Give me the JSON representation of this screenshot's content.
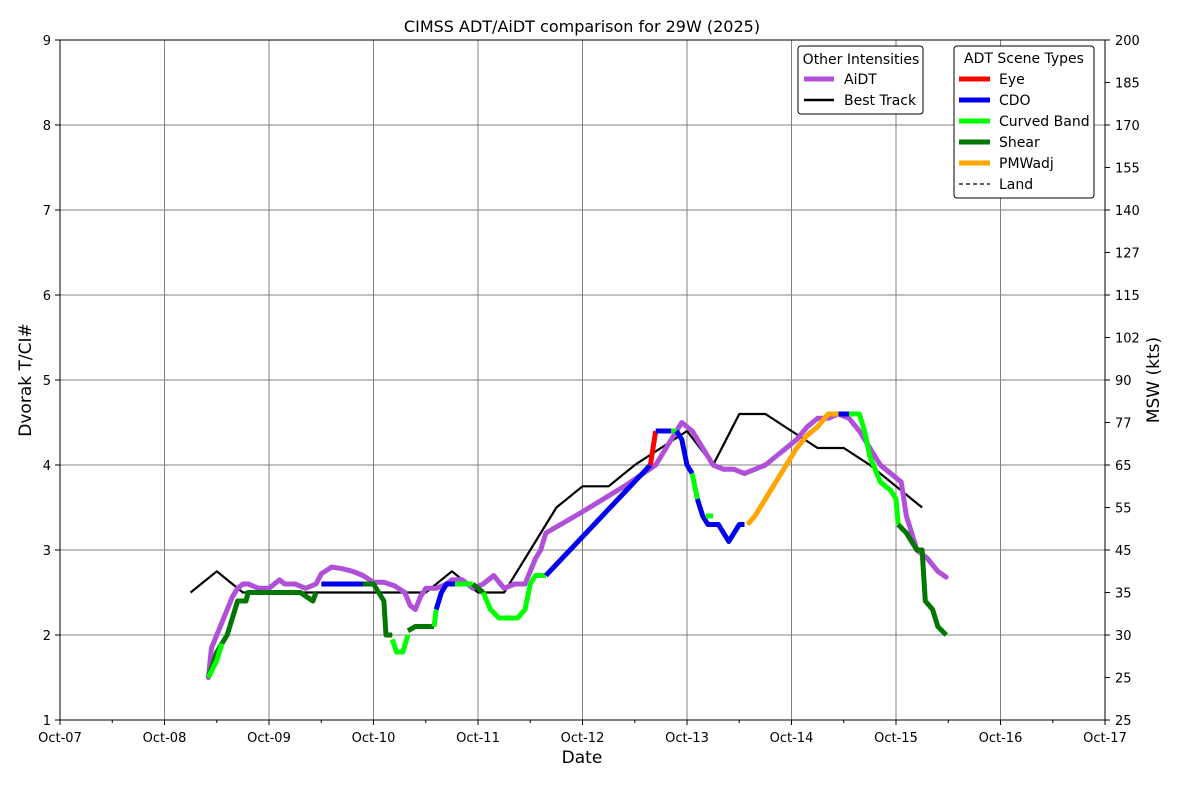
{
  "chart_data": {
    "type": "line",
    "title": "CIMSS ADT/AiDT comparison for 29W (2025)",
    "xlabel": "Date",
    "ylabel": "Dvorak T/CI#",
    "ylabel_right": "MSW (kts)",
    "x_ticks": [
      "Oct-07",
      "Oct-08",
      "Oct-09",
      "Oct-10",
      "Oct-11",
      "Oct-12",
      "Oct-13",
      "Oct-14",
      "Oct-15",
      "Oct-16",
      "Oct-17"
    ],
    "xlim": [
      0,
      10
    ],
    "ylim": [
      1,
      9
    ],
    "y_ticks": [
      1,
      2,
      3,
      4,
      5,
      6,
      7,
      8,
      9
    ],
    "y_ticks_right": [
      {
        "t": 1.0,
        "label": "25"
      },
      {
        "t": 1.5,
        "label": "25"
      },
      {
        "t": 2.0,
        "label": "30"
      },
      {
        "t": 2.5,
        "label": "35"
      },
      {
        "t": 3.0,
        "label": "45"
      },
      {
        "t": 3.5,
        "label": "55"
      },
      {
        "t": 4.0,
        "label": "65"
      },
      {
        "t": 4.5,
        "label": "77"
      },
      {
        "t": 5.0,
        "label": "90"
      },
      {
        "t": 5.5,
        "label": "102"
      },
      {
        "t": 6.0,
        "label": "115"
      },
      {
        "t": 6.5,
        "label": "127"
      },
      {
        "t": 7.0,
        "label": "140"
      },
      {
        "t": 7.5,
        "label": "155"
      },
      {
        "t": 8.0,
        "label": "170"
      },
      {
        "t": 8.5,
        "label": "185"
      },
      {
        "t": 9.0,
        "label": "200"
      }
    ],
    "grid": true,
    "legend_intensities": {
      "title": "Other Intensities",
      "placement": "top-right",
      "entries": [
        {
          "label": "AiDT",
          "color": "#b04fd8",
          "style": "solid"
        },
        {
          "label": "Best Track",
          "color": "#000000",
          "style": "solid"
        }
      ]
    },
    "legend_scenes": {
      "title": "ADT Scene Types",
      "placement": "top-right",
      "entries": [
        {
          "label": "Eye",
          "color": "#ff0000",
          "style": "solid"
        },
        {
          "label": "CDO",
          "color": "#0000ee",
          "style": "solid"
        },
        {
          "label": "Curved Band",
          "color": "#00ff00",
          "style": "solid"
        },
        {
          "label": "Shear",
          "color": "#007700",
          "style": "solid"
        },
        {
          "label": "PMWadj",
          "color": "#ffa500",
          "style": "solid"
        },
        {
          "label": "Land",
          "color": "#000000",
          "style": "dashed"
        }
      ]
    },
    "series": [
      {
        "name": "Best Track",
        "color": "#000000",
        "points": [
          [
            1.25,
            2.5
          ],
          [
            1.5,
            2.75
          ],
          [
            1.75,
            2.5
          ],
          [
            2.0,
            2.5
          ],
          [
            2.25,
            2.5
          ],
          [
            2.5,
            2.5
          ],
          [
            2.75,
            2.5
          ],
          [
            3.0,
            2.5
          ],
          [
            3.25,
            2.5
          ],
          [
            3.5,
            2.5
          ],
          [
            3.75,
            2.75
          ],
          [
            4.0,
            2.5
          ],
          [
            4.25,
            2.5
          ],
          [
            4.5,
            3.0
          ],
          [
            4.75,
            3.5
          ],
          [
            5.0,
            3.75
          ],
          [
            5.25,
            3.75
          ],
          [
            5.5,
            4.0
          ],
          [
            5.75,
            4.2
          ],
          [
            6.0,
            4.4
          ],
          [
            6.25,
            4.0
          ],
          [
            6.5,
            4.6
          ],
          [
            6.75,
            4.6
          ],
          [
            7.0,
            4.4
          ],
          [
            7.25,
            4.2
          ],
          [
            7.5,
            4.2
          ],
          [
            7.75,
            4.0
          ],
          [
            8.0,
            3.75
          ],
          [
            8.25,
            3.5
          ]
        ]
      },
      {
        "name": "AiDT",
        "color": "#b04fd8",
        "points": [
          [
            1.42,
            1.5
          ],
          [
            1.45,
            1.85
          ],
          [
            1.5,
            2.0
          ],
          [
            1.55,
            2.15
          ],
          [
            1.6,
            2.3
          ],
          [
            1.65,
            2.45
          ],
          [
            1.7,
            2.55
          ],
          [
            1.75,
            2.6
          ],
          [
            1.8,
            2.6
          ],
          [
            1.9,
            2.55
          ],
          [
            2.0,
            2.55
          ],
          [
            2.1,
            2.65
          ],
          [
            2.15,
            2.6
          ],
          [
            2.25,
            2.6
          ],
          [
            2.35,
            2.55
          ],
          [
            2.45,
            2.6
          ],
          [
            2.5,
            2.72
          ],
          [
            2.6,
            2.8
          ],
          [
            2.7,
            2.78
          ],
          [
            2.8,
            2.75
          ],
          [
            2.9,
            2.7
          ],
          [
            3.0,
            2.62
          ],
          [
            3.1,
            2.62
          ],
          [
            3.2,
            2.58
          ],
          [
            3.3,
            2.5
          ],
          [
            3.35,
            2.35
          ],
          [
            3.4,
            2.3
          ],
          [
            3.45,
            2.45
          ],
          [
            3.5,
            2.55
          ],
          [
            3.6,
            2.55
          ],
          [
            3.7,
            2.6
          ],
          [
            3.75,
            2.65
          ],
          [
            3.85,
            2.65
          ],
          [
            3.95,
            2.55
          ],
          [
            4.05,
            2.6
          ],
          [
            4.15,
            2.7
          ],
          [
            4.25,
            2.55
          ],
          [
            4.35,
            2.6
          ],
          [
            4.45,
            2.6
          ],
          [
            4.55,
            2.9
          ],
          [
            4.6,
            3.0
          ],
          [
            4.65,
            3.2
          ],
          [
            5.0,
            3.45
          ],
          [
            5.4,
            3.75
          ],
          [
            5.7,
            4.0
          ],
          [
            5.85,
            4.3
          ],
          [
            5.95,
            4.5
          ],
          [
            6.05,
            4.4
          ],
          [
            6.15,
            4.2
          ],
          [
            6.25,
            4.0
          ],
          [
            6.35,
            3.95
          ],
          [
            6.45,
            3.95
          ],
          [
            6.55,
            3.9
          ],
          [
            6.65,
            3.95
          ],
          [
            6.75,
            4.0
          ],
          [
            6.85,
            4.1
          ],
          [
            6.95,
            4.2
          ],
          [
            7.05,
            4.3
          ],
          [
            7.15,
            4.45
          ],
          [
            7.25,
            4.55
          ],
          [
            7.35,
            4.55
          ],
          [
            7.45,
            4.6
          ],
          [
            7.55,
            4.55
          ],
          [
            7.65,
            4.4
          ],
          [
            7.75,
            4.2
          ],
          [
            7.85,
            4.0
          ],
          [
            7.95,
            3.9
          ],
          [
            8.05,
            3.8
          ],
          [
            8.1,
            3.4
          ],
          [
            8.2,
            3.0
          ],
          [
            8.3,
            2.9
          ],
          [
            8.4,
            2.75
          ],
          [
            8.48,
            2.68
          ]
        ]
      },
      {
        "name": "ADT",
        "segments": [
          {
            "scene": "Shear",
            "color": "#007700",
            "points": [
              [
                1.42,
                1.5
              ],
              [
                1.5,
                1.8
              ],
              [
                1.6,
                2.0
              ],
              [
                1.65,
                2.2
              ],
              [
                1.7,
                2.4
              ],
              [
                1.78,
                2.4
              ],
              [
                1.8,
                2.5
              ],
              [
                2.0,
                2.5
              ],
              [
                2.3,
                2.5
              ],
              [
                2.42,
                2.4
              ],
              [
                2.45,
                2.5
              ]
            ]
          },
          {
            "scene": "Curved Band",
            "color": "#00ff00",
            "points": [
              [
                1.42,
                1.5
              ],
              [
                1.5,
                1.7
              ],
              [
                1.55,
                1.9
              ]
            ]
          },
          {
            "scene": "CDO",
            "color": "#0000ee",
            "points": [
              [
                2.5,
                2.6
              ],
              [
                2.8,
                2.6
              ],
              [
                2.9,
                2.6
              ]
            ]
          },
          {
            "scene": "Shear",
            "color": "#007700",
            "points": [
              [
                2.9,
                2.6
              ],
              [
                3.0,
                2.6
              ],
              [
                3.05,
                2.5
              ],
              [
                3.1,
                2.4
              ],
              [
                3.12,
                2.0
              ],
              [
                3.15,
                2.0
              ],
              [
                3.18,
                2.0
              ]
            ]
          },
          {
            "scene": "Curved Band",
            "color": "#00ff00",
            "points": [
              [
                3.18,
                1.95
              ],
              [
                3.22,
                1.8
              ],
              [
                3.28,
                1.8
              ],
              [
                3.33,
                2.0
              ]
            ]
          },
          {
            "scene": "Shear",
            "color": "#007700",
            "points": [
              [
                3.33,
                2.05
              ],
              [
                3.4,
                2.1
              ],
              [
                3.5,
                2.1
              ],
              [
                3.58,
                2.1
              ]
            ]
          },
          {
            "scene": "Curved Band",
            "color": "#00ff00",
            "points": [
              [
                3.58,
                2.1
              ],
              [
                3.6,
                2.3
              ]
            ]
          },
          {
            "scene": "CDO",
            "color": "#0000ee",
            "points": [
              [
                3.6,
                2.3
              ],
              [
                3.65,
                2.5
              ],
              [
                3.7,
                2.6
              ],
              [
                3.78,
                2.6
              ]
            ]
          },
          {
            "scene": "Curved Band",
            "color": "#00ff00",
            "points": [
              [
                3.78,
                2.6
              ],
              [
                3.95,
                2.6
              ]
            ]
          },
          {
            "scene": "Shear",
            "color": "#007700",
            "points": [
              [
                3.95,
                2.6
              ],
              [
                4.0,
                2.55
              ],
              [
                4.05,
                2.5
              ]
            ]
          },
          {
            "scene": "Curved Band",
            "color": "#00ff00",
            "points": [
              [
                4.05,
                2.5
              ],
              [
                4.12,
                2.3
              ],
              [
                4.2,
                2.2
              ],
              [
                4.38,
                2.2
              ],
              [
                4.45,
                2.3
              ],
              [
                4.5,
                2.6
              ],
              [
                4.55,
                2.7
              ],
              [
                4.65,
                2.7
              ]
            ]
          },
          {
            "scene": "CDO",
            "color": "#0000ee",
            "points": [
              [
                4.65,
                2.7
              ],
              [
                5.65,
                4.0
              ]
            ]
          },
          {
            "scene": "Eye",
            "color": "#ff0000",
            "points": [
              [
                5.65,
                4.0
              ],
              [
                5.7,
                4.4
              ]
            ]
          },
          {
            "scene": "CDO",
            "color": "#0000ee",
            "points": [
              [
                5.7,
                4.4
              ],
              [
                5.85,
                4.4
              ]
            ]
          },
          {
            "scene": "Curved Band",
            "color": "#00ff00",
            "points": [
              [
                5.85,
                4.4
              ],
              [
                5.9,
                4.4
              ]
            ]
          },
          {
            "scene": "CDO",
            "color": "#0000ee",
            "points": [
              [
                5.9,
                4.4
              ],
              [
                5.95,
                4.3
              ],
              [
                6.0,
                4.0
              ],
              [
                6.05,
                3.9
              ]
            ]
          },
          {
            "scene": "Curved Band",
            "color": "#00ff00",
            "points": [
              [
                6.05,
                3.9
              ],
              [
                6.1,
                3.6
              ]
            ]
          },
          {
            "scene": "CDO",
            "color": "#0000ee",
            "points": [
              [
                6.1,
                3.6
              ],
              [
                6.15,
                3.4
              ],
              [
                6.2,
                3.3
              ],
              [
                6.3,
                3.3
              ],
              [
                6.35,
                3.2
              ],
              [
                6.4,
                3.1
              ],
              [
                6.45,
                3.2
              ],
              [
                6.5,
                3.3
              ],
              [
                6.55,
                3.3
              ]
            ]
          },
          {
            "scene": "Curved Band",
            "color": "#00ff00",
            "points": [
              [
                6.18,
                3.4
              ],
              [
                6.25,
                3.4
              ]
            ]
          },
          {
            "scene": "PMWadj",
            "color": "#ffa500",
            "points": [
              [
                6.58,
                3.3
              ],
              [
                6.65,
                3.4
              ],
              [
                6.75,
                3.6
              ],
              [
                6.85,
                3.8
              ],
              [
                6.95,
                4.0
              ],
              [
                7.05,
                4.2
              ],
              [
                7.15,
                4.35
              ],
              [
                7.25,
                4.45
              ],
              [
                7.35,
                4.6
              ],
              [
                7.45,
                4.6
              ]
            ]
          },
          {
            "scene": "CDO",
            "color": "#0000ee",
            "points": [
              [
                7.45,
                4.6
              ],
              [
                7.55,
                4.6
              ]
            ]
          },
          {
            "scene": "Curved Band",
            "color": "#00ff00",
            "points": [
              [
                7.55,
                4.6
              ],
              [
                7.65,
                4.6
              ],
              [
                7.7,
                4.4
              ],
              [
                7.75,
                4.1
              ],
              [
                7.85,
                3.8
              ],
              [
                7.95,
                3.7
              ],
              [
                8.0,
                3.6
              ],
              [
                8.02,
                3.3
              ]
            ]
          },
          {
            "scene": "Shear",
            "color": "#007700",
            "points": [
              [
                8.02,
                3.3
              ],
              [
                8.1,
                3.2
              ],
              [
                8.2,
                3.0
              ],
              [
                8.25,
                3.0
              ],
              [
                8.28,
                2.4
              ],
              [
                8.35,
                2.3
              ],
              [
                8.4,
                2.1
              ],
              [
                8.48,
                2.0
              ]
            ]
          }
        ]
      }
    ]
  }
}
